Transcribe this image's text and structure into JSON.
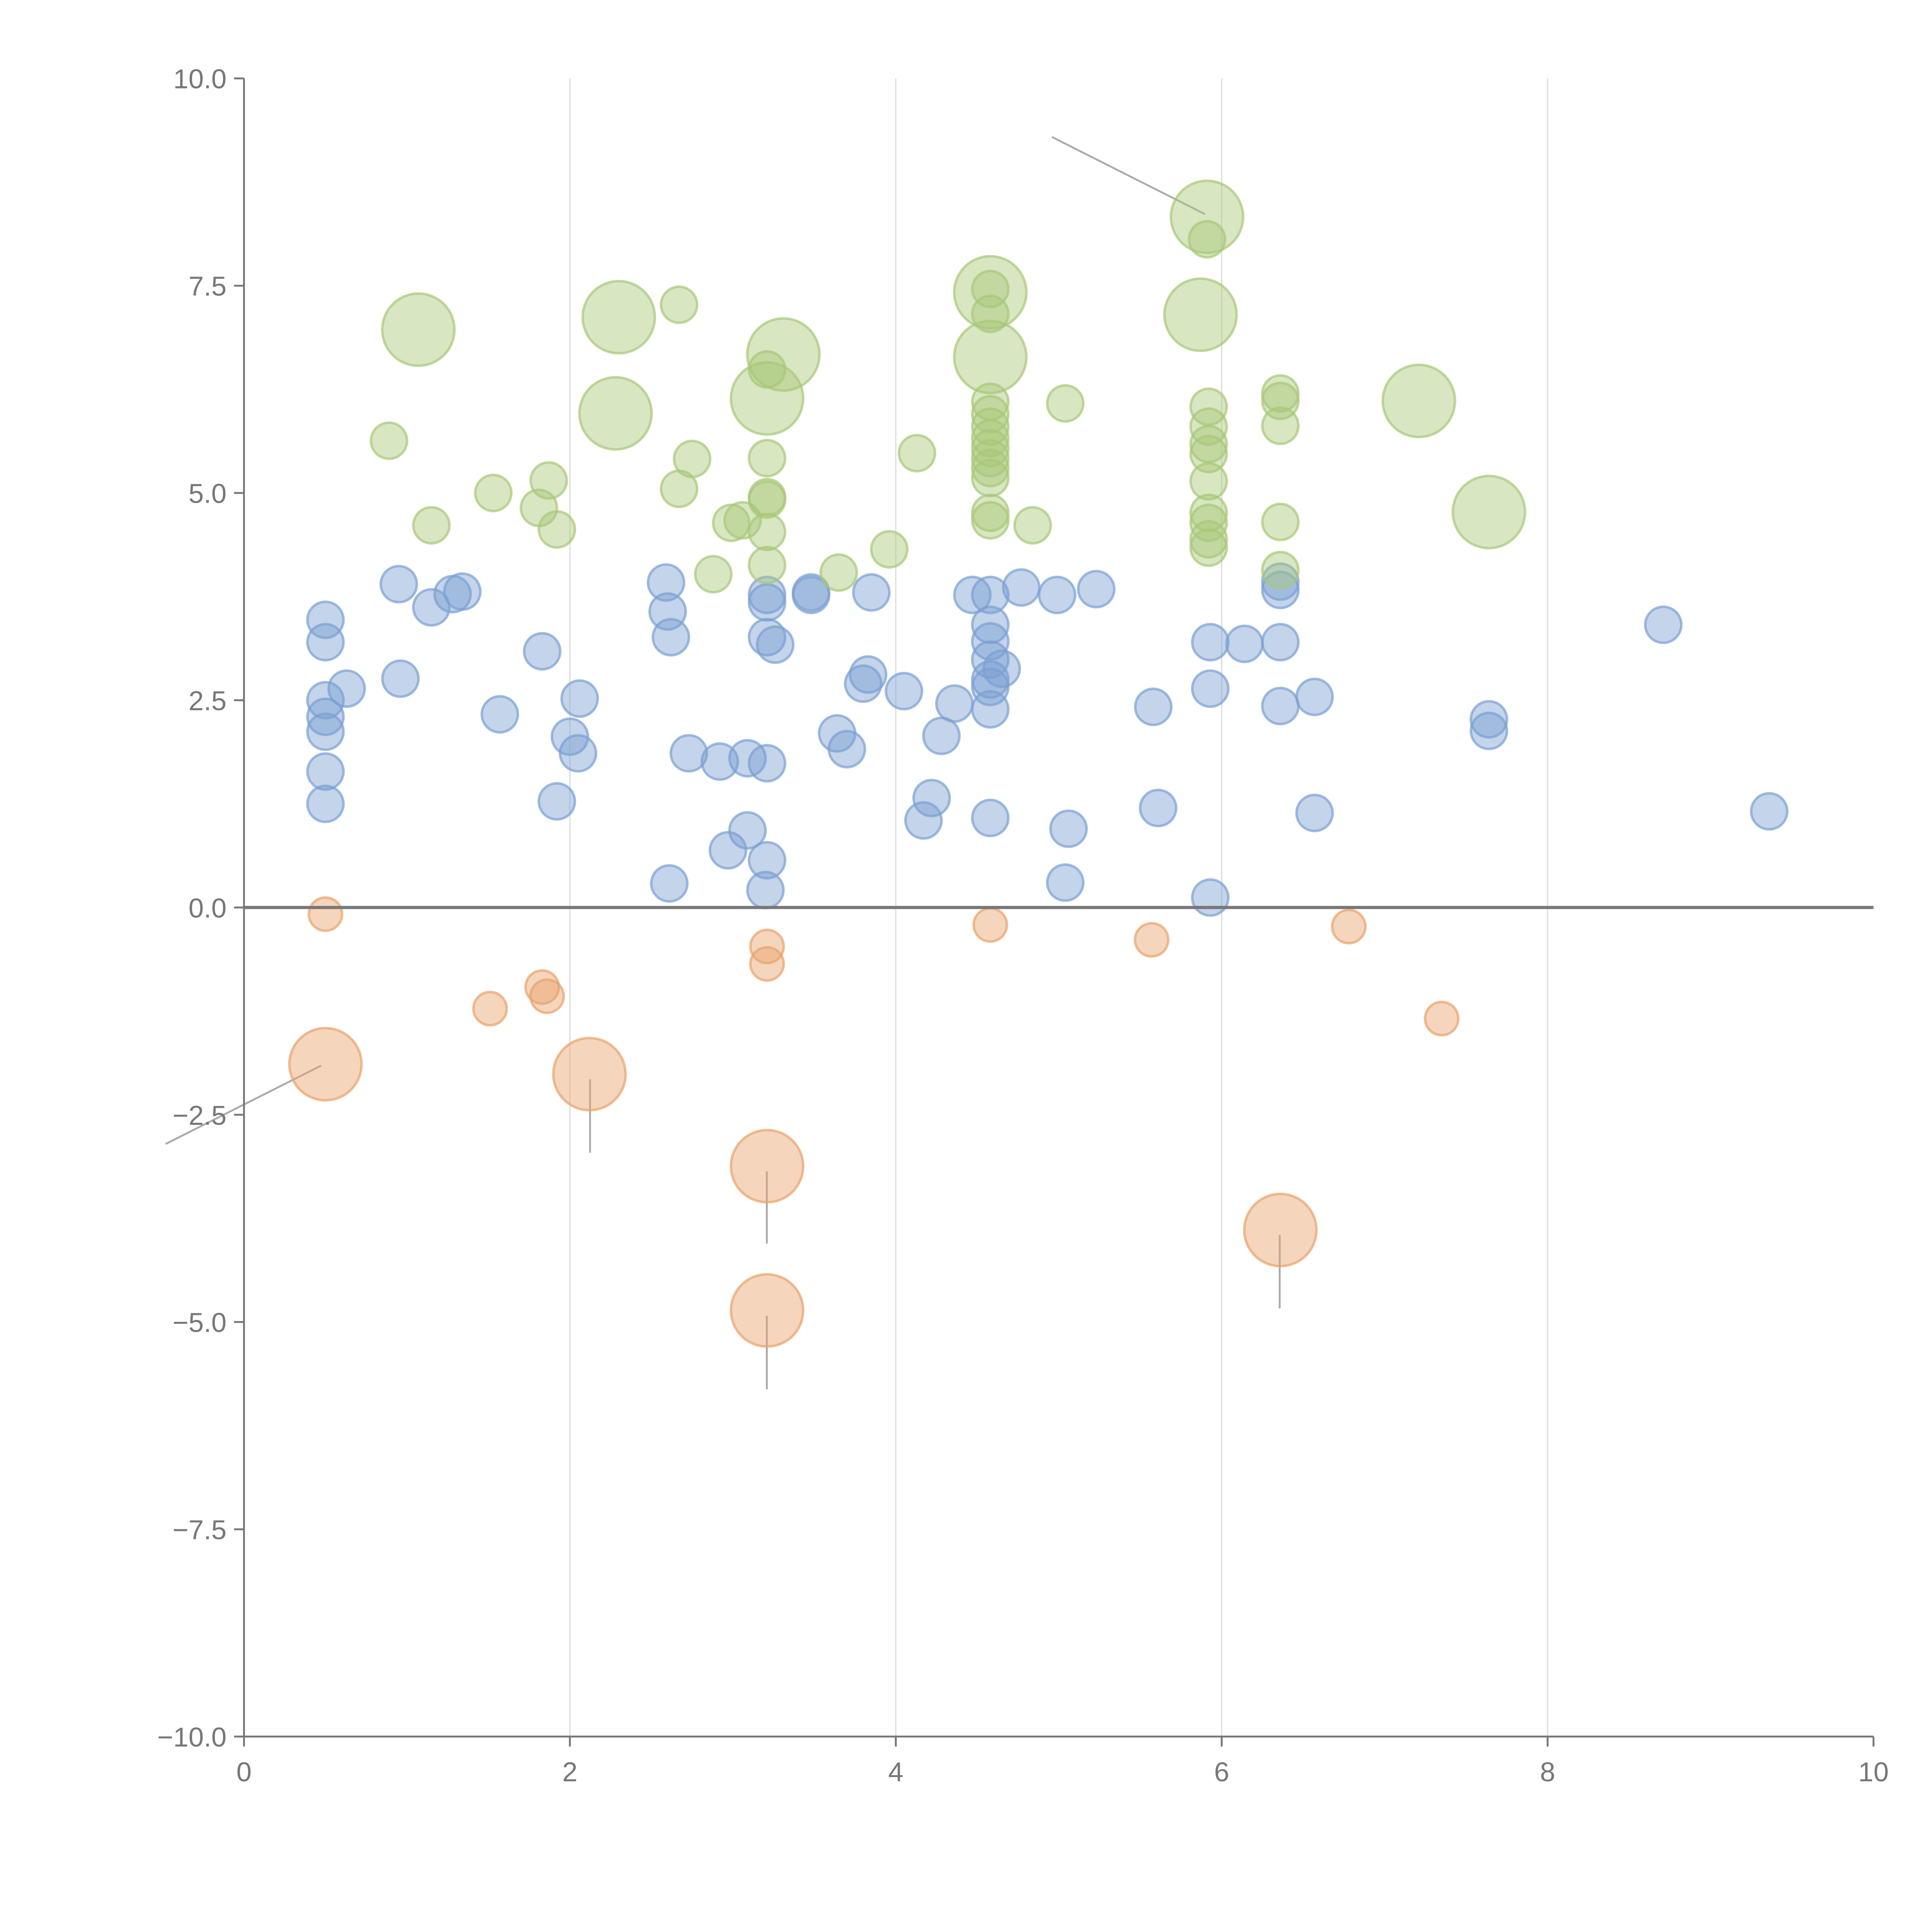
{
  "chart_data": {
    "type": "scatter",
    "subtype": "bubble",
    "title": "",
    "xlabel": "",
    "ylabel": "",
    "xlim": [
      0,
      10
    ],
    "ylim": [
      -10,
      10
    ],
    "grid": "vertical",
    "legend": "none",
    "x_ticks": [
      "0",
      "2",
      "4",
      "6",
      "8",
      "10"
    ],
    "x_tick_values": [
      0,
      2,
      4,
      6,
      8,
      10
    ],
    "y_ticks": [
      "10.0",
      "7.5",
      "5.0",
      "2.5",
      "0.0",
      "−2.5",
      "−5.0",
      "−7.5",
      "−10.0"
    ],
    "y_tick_values": [
      10,
      7.5,
      5,
      2.5,
      0,
      -2.5,
      -5,
      -7.5,
      -10
    ],
    "reference_line_y": 0,
    "point_format": "[x, y, size]",
    "series": [
      {
        "name": "blue",
        "color": "#7b9fd2",
        "points": [
          [
            0.5,
            3.47,
            1
          ],
          [
            0.5,
            3.2,
            1
          ],
          [
            0.5,
            2.5,
            1
          ],
          [
            0.5,
            2.3,
            1
          ],
          [
            0.5,
            2.12,
            1
          ],
          [
            0.5,
            1.64,
            1
          ],
          [
            0.5,
            1.25,
            1
          ],
          [
            0.63,
            2.64,
            1
          ],
          [
            0.95,
            3.9,
            1
          ],
          [
            0.96,
            2.76,
            1
          ],
          [
            1.15,
            3.62,
            1
          ],
          [
            1.28,
            3.78,
            1
          ],
          [
            1.34,
            3.81,
            1
          ],
          [
            1.57,
            2.33,
            1
          ],
          [
            1.83,
            3.09,
            1
          ],
          [
            1.92,
            1.28,
            1
          ],
          [
            2.0,
            2.06,
            1
          ],
          [
            2.06,
            2.52,
            1
          ],
          [
            2.05,
            1.86,
            1
          ],
          [
            2.59,
            3.92,
            1
          ],
          [
            2.6,
            3.57,
            1
          ],
          [
            2.62,
            3.26,
            1
          ],
          [
            2.61,
            0.29,
            1
          ],
          [
            2.73,
            1.86,
            1
          ],
          [
            2.92,
            1.76,
            1
          ],
          [
            2.97,
            0.69,
            1
          ],
          [
            3.09,
            1.8,
            1
          ],
          [
            3.09,
            0.93,
            1
          ],
          [
            3.21,
            1.74,
            1
          ],
          [
            3.21,
            0.57,
            1
          ],
          [
            3.2,
            0.21,
            1
          ],
          [
            3.21,
            3.77,
            1
          ],
          [
            3.21,
            3.68,
            1
          ],
          [
            3.21,
            3.26,
            1
          ],
          [
            3.26,
            3.17,
            1
          ],
          [
            3.48,
            3.8,
            1
          ],
          [
            3.48,
            3.77,
            1
          ],
          [
            3.64,
            2.1,
            1
          ],
          [
            3.7,
            1.91,
            1
          ],
          [
            3.8,
            2.7,
            1
          ],
          [
            3.83,
            2.81,
            1
          ],
          [
            3.85,
            3.8,
            1
          ],
          [
            4.05,
            2.61,
            1
          ],
          [
            4.17,
            1.05,
            1
          ],
          [
            4.22,
            1.32,
            1
          ],
          [
            4.28,
            2.07,
            1
          ],
          [
            4.36,
            2.46,
            1
          ],
          [
            4.47,
            3.77,
            1
          ],
          [
            4.58,
            3.77,
            1
          ],
          [
            4.58,
            3.41,
            1
          ],
          [
            4.58,
            3.21,
            1
          ],
          [
            4.58,
            2.99,
            1
          ],
          [
            4.58,
            2.75,
            1
          ],
          [
            4.58,
            2.66,
            1
          ],
          [
            4.58,
            2.39,
            1
          ],
          [
            4.58,
            1.08,
            1
          ],
          [
            4.65,
            2.88,
            1
          ],
          [
            4.77,
            3.86,
            1
          ],
          [
            4.99,
            3.77,
            1
          ],
          [
            5.04,
            0.3,
            1
          ],
          [
            5.06,
            0.95,
            1
          ],
          [
            5.23,
            3.84,
            1
          ],
          [
            5.58,
            2.42,
            1
          ],
          [
            5.61,
            1.2,
            1
          ],
          [
            5.93,
            3.2,
            1
          ],
          [
            5.93,
            2.64,
            1
          ],
          [
            5.93,
            0.12,
            1
          ],
          [
            6.14,
            3.18,
            1
          ],
          [
            6.36,
            3.2,
            1
          ],
          [
            6.36,
            3.83,
            1
          ],
          [
            6.36,
            3.93,
            1
          ],
          [
            6.36,
            2.43,
            1
          ],
          [
            6.57,
            2.54,
            1
          ],
          [
            6.57,
            1.14,
            1
          ],
          [
            7.64,
            2.27,
            1
          ],
          [
            7.64,
            2.13,
            1
          ],
          [
            8.71,
            3.41,
            1
          ],
          [
            9.36,
            1.16,
            1
          ]
        ]
      },
      {
        "name": "orange",
        "color": "#e8a26b",
        "points": [
          [
            0.5,
            -0.08,
            0.85
          ],
          [
            0.5,
            -1.89,
            4
          ],
          [
            1.51,
            -1.22,
            0.85
          ],
          [
            1.83,
            -0.96,
            0.85
          ],
          [
            1.86,
            -1.07,
            0.85
          ],
          [
            2.12,
            -2.01,
            4
          ],
          [
            3.21,
            -0.47,
            0.85
          ],
          [
            3.21,
            -0.68,
            0.85
          ],
          [
            3.21,
            -3.12,
            4
          ],
          [
            3.21,
            -4.86,
            4
          ],
          [
            4.58,
            -0.21,
            0.85
          ],
          [
            5.57,
            -0.39,
            0.85
          ],
          [
            6.36,
            -3.89,
            4
          ],
          [
            6.78,
            -0.23,
            0.85
          ],
          [
            7.35,
            -1.34,
            0.85
          ]
        ]
      },
      {
        "name": "green",
        "color": "#a8c878",
        "points": [
          [
            1.07,
            6.97,
            4
          ],
          [
            2.3,
            7.12,
            4
          ],
          [
            2.28,
            5.96,
            4
          ],
          [
            3.31,
            6.67,
            4
          ],
          [
            3.21,
            6.14,
            4
          ],
          [
            4.58,
            7.42,
            4
          ],
          [
            4.58,
            6.64,
            4
          ],
          [
            5.91,
            8.33,
            4
          ],
          [
            5.87,
            7.15,
            4
          ],
          [
            7.21,
            6.11,
            4
          ],
          [
            7.64,
            4.77,
            4
          ],
          [
            0.89,
            5.63,
            1
          ],
          [
            1.15,
            4.61,
            1
          ],
          [
            1.53,
            5.0,
            1
          ],
          [
            1.81,
            4.82,
            1
          ],
          [
            1.87,
            5.15,
            1
          ],
          [
            1.92,
            4.56,
            1
          ],
          [
            2.67,
            7.27,
            1
          ],
          [
            2.67,
            5.05,
            1
          ],
          [
            2.75,
            5.41,
            1
          ],
          [
            2.88,
            4.02,
            1
          ],
          [
            2.99,
            4.64,
            1
          ],
          [
            3.06,
            4.67,
            1
          ],
          [
            3.21,
            6.49,
            1
          ],
          [
            3.21,
            5.42,
            1
          ],
          [
            3.21,
            4.95,
            1
          ],
          [
            3.21,
            4.92,
            1
          ],
          [
            3.21,
            4.53,
            1
          ],
          [
            3.21,
            4.13,
            1
          ],
          [
            3.65,
            4.04,
            1
          ],
          [
            3.96,
            4.32,
            1
          ],
          [
            4.13,
            5.48,
            1
          ],
          [
            4.58,
            7.46,
            1
          ],
          [
            4.58,
            7.16,
            1
          ],
          [
            4.58,
            6.1,
            1
          ],
          [
            4.58,
            5.95,
            1
          ],
          [
            4.58,
            5.8,
            1
          ],
          [
            4.58,
            5.66,
            1
          ],
          [
            4.58,
            5.54,
            1
          ],
          [
            4.58,
            5.42,
            1
          ],
          [
            4.58,
            5.3,
            1
          ],
          [
            4.58,
            5.18,
            1
          ],
          [
            4.58,
            4.76,
            1
          ],
          [
            4.58,
            4.67,
            1
          ],
          [
            4.84,
            4.61,
            1
          ],
          [
            5.04,
            6.08,
            1
          ],
          [
            5.91,
            8.06,
            1
          ],
          [
            5.92,
            6.04,
            1
          ],
          [
            5.92,
            5.8,
            1
          ],
          [
            5.92,
            5.59,
            1
          ],
          [
            5.92,
            5.47,
            1
          ],
          [
            5.92,
            5.14,
            1
          ],
          [
            5.92,
            4.76,
            1
          ],
          [
            5.92,
            4.64,
            1
          ],
          [
            5.92,
            4.44,
            1
          ],
          [
            5.92,
            4.34,
            1
          ],
          [
            6.36,
            6.2,
            1
          ],
          [
            6.36,
            6.11,
            1
          ],
          [
            6.36,
            5.81,
            1
          ],
          [
            6.36,
            4.65,
            1
          ],
          [
            6.36,
            4.07,
            1
          ]
        ]
      }
    ]
  }
}
